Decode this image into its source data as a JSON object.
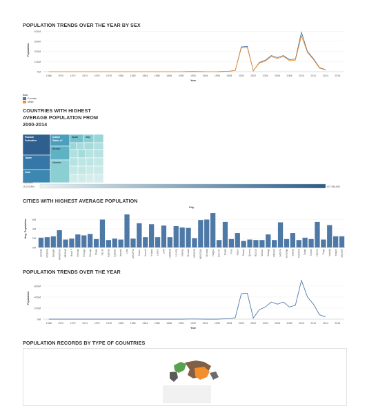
{
  "chart_data": [
    {
      "type": "line",
      "title": "POPULATION TRENDS OVER THE YEAR BY SEX",
      "xlabel": "Year",
      "ylabel": "Population",
      "x": [
        1968,
        1970,
        1972,
        1974,
        1976,
        1978,
        1980,
        1982,
        1984,
        1986,
        1988,
        1990,
        1992,
        1994,
        1996,
        1998,
        1999,
        2000,
        2001,
        2002,
        2003,
        2004,
        2005,
        2006,
        2007,
        2008,
        2009,
        2010,
        2011,
        2012,
        2013,
        2014
      ],
      "xticks": [
        "1968",
        "1970",
        "1972",
        "1974",
        "1976",
        "1978",
        "1980",
        "1982",
        "1984",
        "1986",
        "1988",
        "1990",
        "1992",
        "1994",
        "1996",
        "1998",
        "2000",
        "2002",
        "2004",
        "2006",
        "2008",
        "2010",
        "2012",
        "2014",
        "2016"
      ],
      "yticks": [
        "0M",
        "100M",
        "200M",
        "300M",
        "400M"
      ],
      "ylim": [
        0,
        430
      ],
      "series": [
        {
          "name": "Female",
          "color": "#4e79a7",
          "values": [
            0,
            0,
            0,
            0,
            0,
            0,
            0,
            0,
            0,
            0,
            0,
            0,
            2,
            0,
            0,
            5,
            12,
            245,
            250,
            8,
            90,
            115,
            160,
            140,
            160,
            120,
            125,
            390,
            200,
            130,
            40,
            20
          ]
        },
        {
          "name": "Male",
          "color": "#f28e2b",
          "values": [
            0,
            0,
            0,
            0,
            0,
            0,
            0,
            0,
            0,
            0,
            0,
            0,
            2,
            0,
            0,
            5,
            12,
            235,
            240,
            8,
            85,
            105,
            150,
            130,
            150,
            110,
            115,
            355,
            190,
            120,
            35,
            18
          ]
        }
      ],
      "legend": {
        "title": "Sex",
        "items": [
          {
            "label": "Female",
            "color": "#4e79a7"
          },
          {
            "label": "Male",
            "color": "#f28e2b"
          }
        ]
      }
    },
    {
      "type": "heatmap",
      "title_lines": [
        "COUNTRIES WITH HIGHEST",
        "AVERAGE POPULATION FROM",
        "2000-2014"
      ],
      "labels": [
        "Russian Federation",
        "Japan",
        "India",
        "United States of",
        "Mexico",
        "Ukraine",
        "Spain",
        "Italy"
      ],
      "color_legend": {
        "label": "Population",
        "min": "15,219,860",
        "max": "627,966,860",
        "color_min": "#e6f2f2",
        "color_max": "#2b5c8a"
      }
    },
    {
      "type": "bar",
      "title": "CITIES WITH HIGHEST AVERAGE POPULATION",
      "xlabel": "City",
      "ylabel": "Avg. Population",
      "yticks": [
        "0M",
        "2M",
        "4M",
        "6M"
      ],
      "ylim": [
        0,
        8
      ],
      "color": "#4e79a7",
      "categories": [
        "Ahmeda",
        "ATHENA",
        "Bangalo",
        "BANGKOK",
        "BEIJING",
        "Brazil P",
        "Chennai",
        "Chicago",
        "Chunqin",
        "Dhaka",
        "DELHI",
        "Hyderab",
        "Hydraba",
        "Istanbul",
        "Lima",
        "JAKARTA",
        "Kanpur",
        "Karachi",
        "Kolkata",
        "Lahore",
        "LIMA",
        "LONDON",
        "Los Ang",
        "Madras",
        "Mumbai",
        "MEXICO",
        "MOSCOW",
        "Mumbai",
        "Nagpur",
        "New Yor",
        "Osaka",
        "Pune",
        "Raipur",
        "Rabaul",
        "Quezon",
        "RIO DE",
        "SEOUL",
        "Shangh",
        "SINGAP",
        "SAO PA",
        "Surabaya",
        "Sydney",
        "TEHRAN",
        "Tianjin",
        "Toronto",
        "TOKYO",
        "Tokyo",
        "Vadoda",
        "Yangon",
        "Zapopan"
      ],
      "values": [
        2.1,
        2.2,
        2.4,
        3.7,
        1.7,
        1.9,
        2.8,
        2.6,
        2.9,
        1.8,
        6.0,
        1.6,
        1.9,
        1.7,
        7.1,
        1.9,
        5.2,
        2.2,
        5.0,
        2.2,
        4.7,
        2.2,
        4.6,
        4.3,
        4.2,
        2.0,
        5.9,
        6.0,
        7.4,
        1.6,
        5.5,
        1.8,
        3.1,
        1.4,
        1.7,
        1.6,
        1.6,
        2.8,
        1.6,
        5.4,
        1.8,
        3.1,
        1.6,
        2.1,
        1.8,
        5.5,
        1.7,
        4.8,
        2.4,
        2.4
      ]
    },
    {
      "type": "line",
      "title": "POPULATION TRENDS OVER THE YEAR",
      "xlabel": "Year",
      "ylabel": "Population",
      "x": [
        1968,
        1970,
        1972,
        1974,
        1976,
        1978,
        1980,
        1982,
        1984,
        1986,
        1988,
        1990,
        1992,
        1994,
        1996,
        1998,
        1999,
        2000,
        2001,
        2002,
        2003,
        2004,
        2005,
        2006,
        2007,
        2008,
        2009,
        2010,
        2011,
        2012,
        2013,
        2014
      ],
      "xticks": [
        "1968",
        "1970",
        "1972",
        "1974",
        "1976",
        "1978",
        "1980",
        "1982",
        "1984",
        "1986",
        "1988",
        "1990",
        "1992",
        "1994",
        "1996",
        "1998",
        "2000",
        "2002",
        "2004",
        "2006",
        "2008",
        "2010",
        "2012",
        "2014",
        "2016"
      ],
      "yticks": [
        "0M",
        "200M",
        "400M",
        "600M"
      ],
      "ylim": [
        0,
        760
      ],
      "series": [
        {
          "name": "",
          "color": "#4e79a7",
          "values": [
            0,
            0,
            0,
            0,
            0,
            0,
            0,
            0,
            0,
            0,
            0,
            0,
            4,
            0,
            0,
            10,
            25,
            460,
            470,
            20,
            170,
            220,
            310,
            270,
            310,
            220,
            250,
            700,
            400,
            270,
            80,
            40
          ]
        }
      ]
    },
    {
      "type": "map",
      "title": "POPULATION RECORDS BY TYPE OF COUNTRIES"
    }
  ]
}
